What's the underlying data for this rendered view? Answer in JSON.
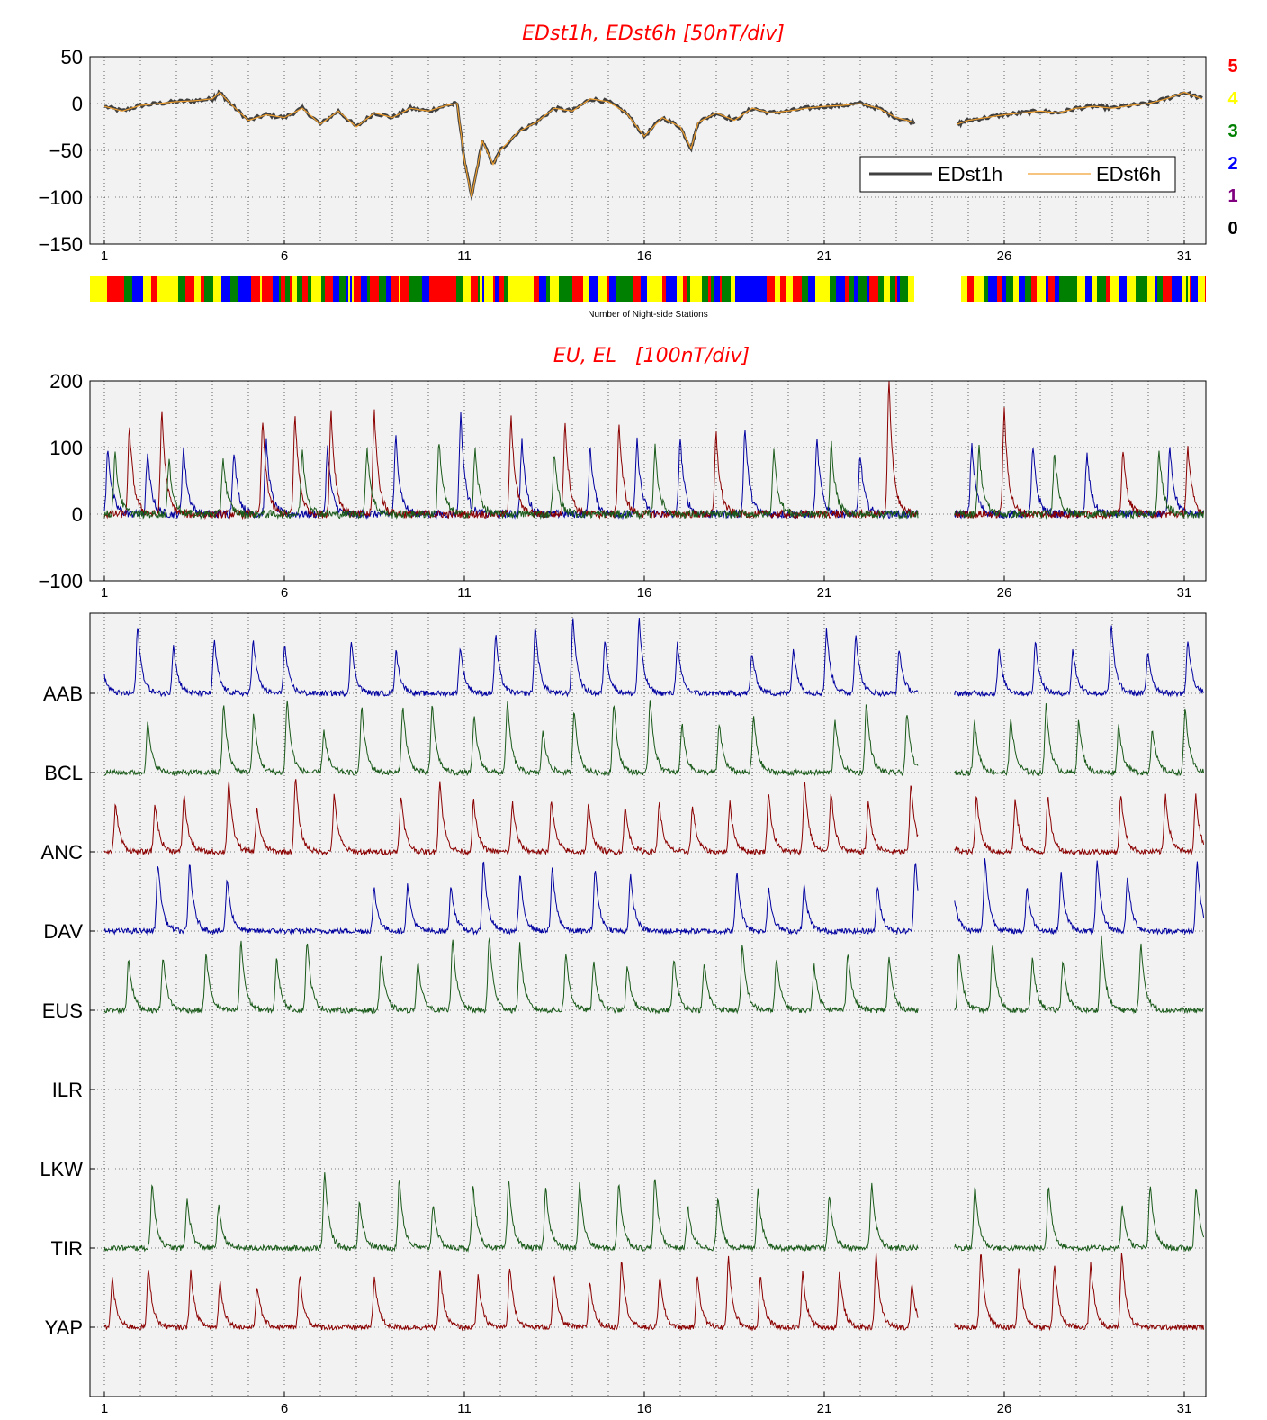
{
  "chart_data": [
    {
      "type": "line",
      "title": "EDst1h, EDst6h [50nT/div]",
      "xlabel": "",
      "ylabel": "",
      "xlim": [
        0.6,
        31.6
      ],
      "ylim": [
        -150,
        50
      ],
      "yticks": [
        "50",
        "0",
        "−50",
        "−100",
        "−150"
      ],
      "xticks": [
        "1",
        "6",
        "11",
        "16",
        "21",
        "26",
        "31"
      ],
      "grid": true,
      "legend_position": "right",
      "data_gap": [
        23.6,
        24.6
      ],
      "series": [
        {
          "name": "EDst1h",
          "color": "#404040",
          "x": [
            1,
            1.5,
            2,
            2.5,
            3,
            3.5,
            4,
            4.2,
            4.5,
            5,
            5.5,
            6,
            6.5,
            7,
            7.5,
            8,
            8.5,
            9,
            9.5,
            10,
            10.5,
            10.8,
            11,
            11.2,
            11.5,
            11.8,
            12,
            12.5,
            13,
            13.5,
            14,
            14.5,
            15,
            15.5,
            16,
            16.5,
            17,
            17.3,
            17.5,
            18,
            18.5,
            19,
            19.5,
            20,
            20.5,
            21,
            21.5,
            22,
            22.5,
            23,
            23.5,
            24.7,
            25,
            25.5,
            26,
            26.5,
            27,
            27.5,
            28,
            28.5,
            29,
            29.5,
            30,
            30.5,
            31,
            31.5
          ],
          "y": [
            -3,
            -8,
            -2,
            0,
            2,
            3,
            5,
            12,
            0,
            -18,
            -12,
            -15,
            -5,
            -22,
            -8,
            -25,
            -10,
            -15,
            -5,
            -8,
            -2,
            0,
            -60,
            -100,
            -40,
            -65,
            -50,
            -30,
            -20,
            -5,
            -8,
            5,
            2,
            -10,
            -35,
            -15,
            -25,
            -48,
            -20,
            -10,
            -18,
            -5,
            -10,
            -8,
            -5,
            -3,
            -2,
            0,
            -5,
            -15,
            -20,
            -22,
            -18,
            -15,
            -12,
            -10,
            -8,
            -10,
            -5,
            -3,
            -5,
            -2,
            0,
            5,
            12,
            5
          ],
          "values": [
            -3,
            -8,
            -2,
            0,
            2,
            3,
            5,
            12,
            0,
            -18,
            -12,
            -15,
            -5,
            -22,
            -8,
            -25,
            -10,
            -15,
            -5,
            -8,
            -2,
            0,
            -60,
            -100,
            -40,
            -65,
            -50,
            -30,
            -20,
            -5,
            -8,
            5,
            2,
            -10,
            -35,
            -15,
            -25,
            -48,
            -20,
            -10,
            -18,
            -5,
            -10,
            -8,
            -5,
            -3,
            -2,
            0,
            -5,
            -15,
            -20,
            -22,
            -18,
            -15,
            -12,
            -10,
            -8,
            -10,
            -5,
            -3,
            -5,
            -2,
            0,
            5,
            12,
            5
          ]
        },
        {
          "name": "EDst6h",
          "color": "#f0a030",
          "x": [
            1,
            1.5,
            2,
            2.5,
            3,
            3.5,
            4,
            4.2,
            4.5,
            5,
            5.5,
            6,
            6.5,
            7,
            7.5,
            8,
            8.5,
            9,
            9.5,
            10,
            10.5,
            10.8,
            11,
            11.2,
            11.5,
            11.8,
            12,
            12.5,
            13,
            13.5,
            14,
            14.5,
            15,
            15.5,
            16,
            16.5,
            17,
            17.3,
            17.5,
            18,
            18.5,
            19,
            19.5,
            20,
            20.5,
            21,
            21.5,
            22,
            22.5,
            23,
            23.5,
            24.7,
            25,
            25.5,
            26,
            26.5,
            27,
            27.5,
            28,
            28.5,
            29,
            29.5,
            30,
            30.5,
            31,
            31.5
          ],
          "y": [
            -3,
            -8,
            -2,
            0,
            2,
            3,
            5,
            12,
            0,
            -18,
            -12,
            -15,
            -5,
            -22,
            -8,
            -25,
            -10,
            -15,
            -5,
            -8,
            -2,
            0,
            -60,
            -100,
            -40,
            -65,
            -50,
            -30,
            -20,
            -5,
            -8,
            5,
            2,
            -10,
            -35,
            -15,
            -25,
            -48,
            -20,
            -10,
            -18,
            -5,
            -10,
            -8,
            -5,
            -3,
            -2,
            0,
            -5,
            -15,
            -20,
            -22,
            -18,
            -15,
            -12,
            -10,
            -8,
            -10,
            -5,
            -3,
            -5,
            -2,
            0,
            5,
            12,
            5
          ],
          "values": [
            -3,
            -8,
            -2,
            0,
            2,
            3,
            5,
            12,
            0,
            -18,
            -12,
            -15,
            -5,
            -22,
            -8,
            -25,
            -10,
            -15,
            -5,
            -8,
            -2,
            0,
            -60,
            -100,
            -40,
            -65,
            -50,
            -30,
            -20,
            -5,
            -8,
            5,
            2,
            -10,
            -35,
            -15,
            -25,
            -48,
            -20,
            -10,
            -18,
            -5,
            -10,
            -8,
            -5,
            -3,
            -2,
            0,
            -5,
            -15,
            -20,
            -22,
            -18,
            -15,
            -12,
            -10,
            -8,
            -10,
            -5,
            -3,
            -5,
            -2,
            0,
            5,
            12,
            5
          ]
        }
      ],
      "night_side_bar": {
        "label": "Number of Night-side Stations",
        "scale": [
          {
            "value": "5",
            "color": "#ff0000"
          },
          {
            "value": "4",
            "color": "#ffff00"
          },
          {
            "value": "3",
            "color": "#008000"
          },
          {
            "value": "2",
            "color": "#0000ff"
          },
          {
            "value": "1",
            "color": "#800080"
          },
          {
            "value": "0",
            "color": "#000000"
          }
        ]
      }
    },
    {
      "type": "line",
      "title": "EU, EL   [100nT/div]",
      "xlabel": "",
      "ylabel": "",
      "xlim": [
        0.6,
        31.6
      ],
      "ylim": [
        -100,
        200
      ],
      "yticks": [
        "200",
        "100",
        "0",
        "−100"
      ],
      "xticks": [
        "1",
        "6",
        "11",
        "16",
        "21",
        "26",
        "31"
      ],
      "grid": true,
      "series": [
        {
          "name": "",
          "color": "#0000a0",
          "description_peaks": [
            1.1,
            2.2,
            3.2,
            4.6,
            5.5,
            7.2,
            9.1,
            10.9,
            12.6,
            14.5,
            15.8,
            17.0,
            18.8,
            20.8,
            22.0,
            25.1,
            26.8,
            28.3,
            30.6
          ],
          "peak_values": [
            100,
            90,
            100,
            95,
            110,
            100,
            115,
            150,
            110,
            100,
            110,
            115,
            130,
            110,
            90,
            105,
            100,
            90,
            105
          ]
        },
        {
          "name": "",
          "color": "#8b0000",
          "description_peaks": [
            1.7,
            2.6,
            5.4,
            6.3,
            7.3,
            8.5,
            12.3,
            13.8,
            15.3,
            18.0,
            22.8,
            26.0,
            29.3,
            31.1
          ],
          "peak_values": [
            130,
            155,
            140,
            150,
            155,
            155,
            150,
            140,
            135,
            120,
            200,
            155,
            95,
            100
          ]
        },
        {
          "name": "",
          "color": "#1a5a1a",
          "description_peaks": [
            1.3,
            2.8,
            4.3,
            6.5,
            8.3,
            10.3,
            11.3,
            13.5,
            16.3,
            19.6,
            21.2,
            25.3,
            27.4,
            30.3
          ],
          "peak_values": [
            90,
            80,
            85,
            95,
            100,
            110,
            95,
            90,
            100,
            95,
            105,
            100,
            95,
            95
          ]
        }
      ]
    },
    {
      "type": "line",
      "title": "",
      "xlabel": "",
      "ylabel": "",
      "xlim": [
        0.6,
        31.6
      ],
      "xticks": [
        "1",
        "6",
        "11",
        "16",
        "21",
        "26",
        "31"
      ],
      "grid": true,
      "stations": [
        {
          "name": "AAB",
          "color": "#0000a0"
        },
        {
          "name": "BCL",
          "color": "#1a5a1a"
        },
        {
          "name": "ANC",
          "color": "#8b0000"
        },
        {
          "name": "DAV",
          "color": "#0000a0"
        },
        {
          "name": "EUS",
          "color": "#1a5a1a"
        },
        {
          "name": "ILR",
          "color": "#0000a0"
        },
        {
          "name": "LKW",
          "color": "#1a5a1a"
        },
        {
          "name": "TIR",
          "color": "#1a5a1a"
        },
        {
          "name": "YAP",
          "color": "#8b0000"
        }
      ]
    }
  ]
}
